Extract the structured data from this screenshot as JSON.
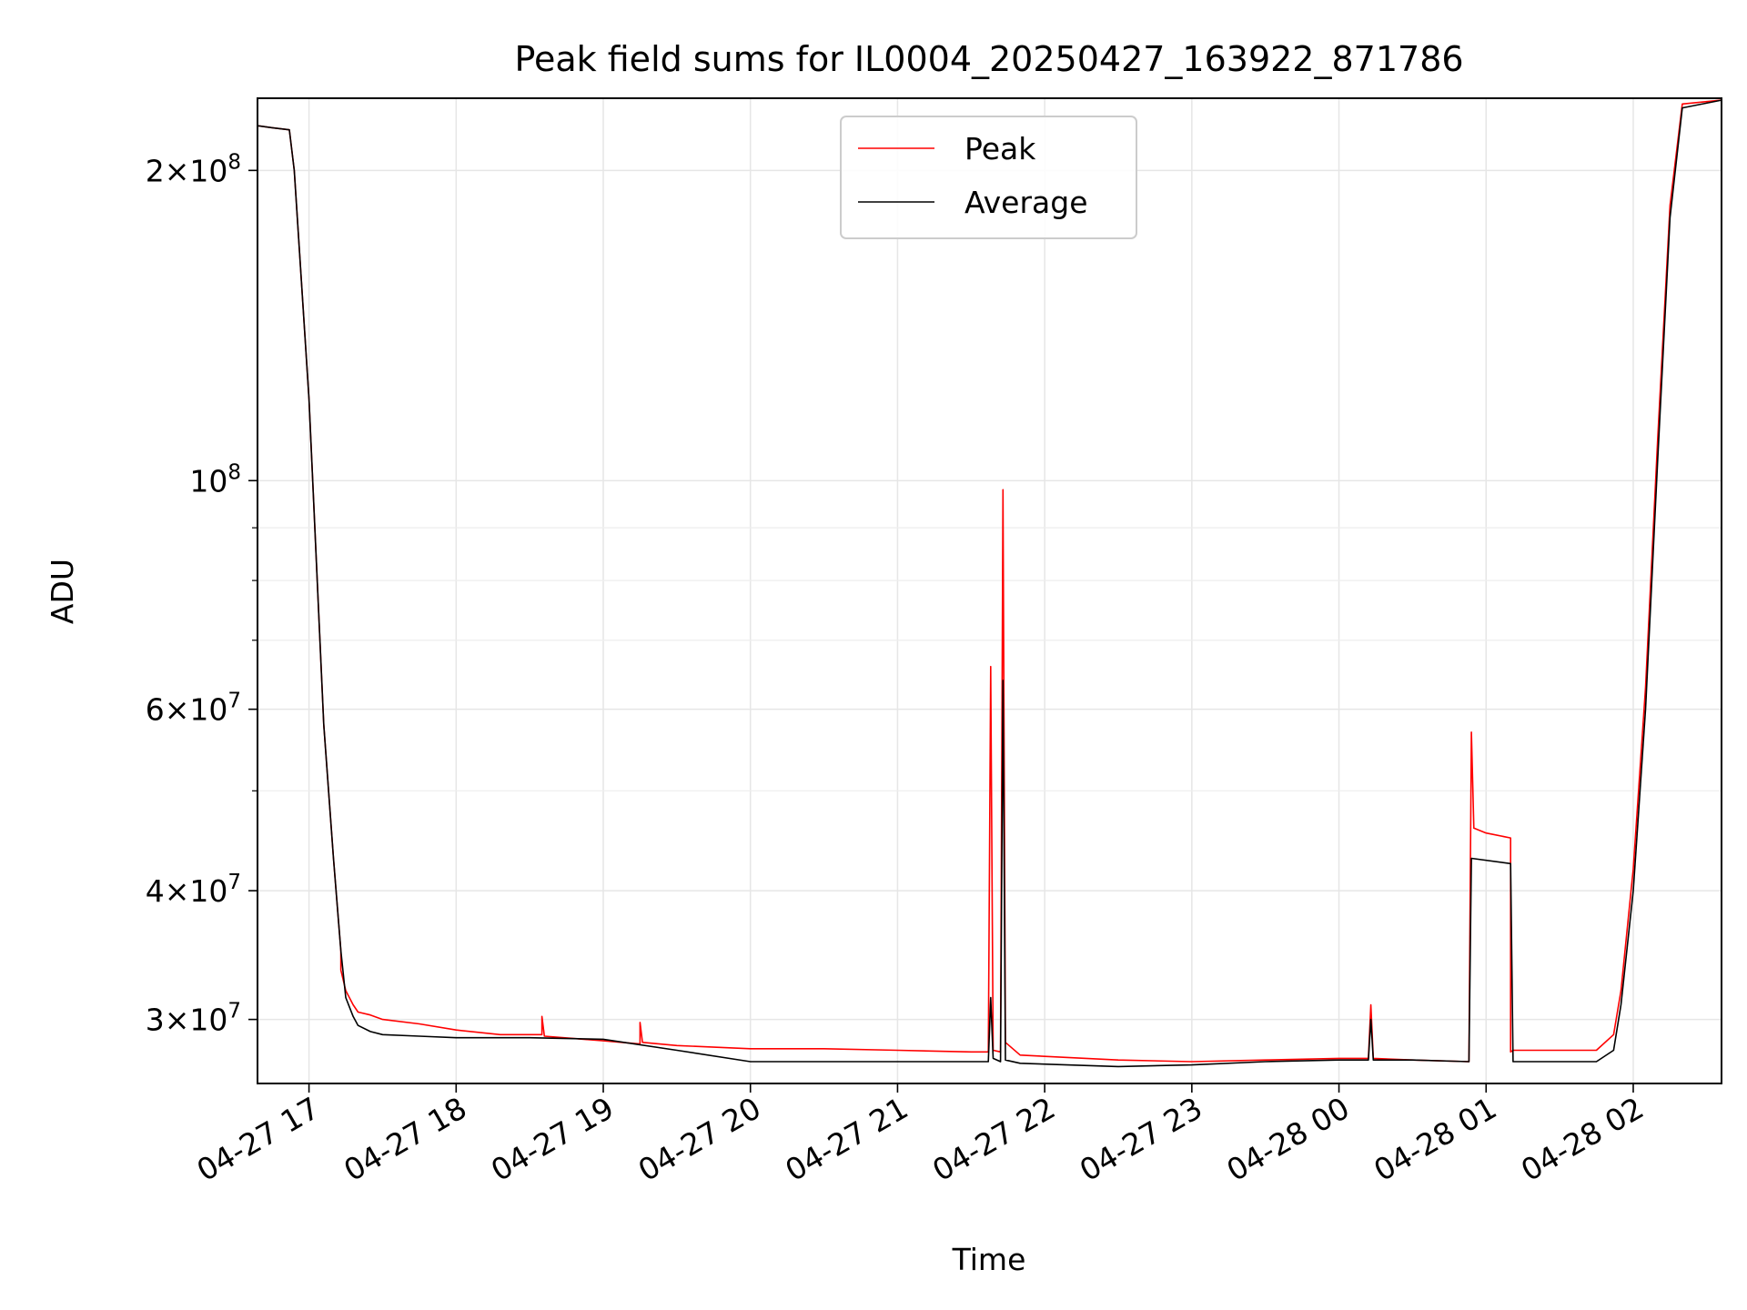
{
  "chart_data": {
    "type": "line",
    "title": "Peak field sums for IL0004_20250427_163922_871786",
    "xlabel": "Time",
    "ylabel": "ADU",
    "x_axis": "datetime",
    "xlim": [
      "2025-04-27 16:39",
      "2025-04-28 02:36"
    ],
    "y_scale": "log",
    "ylim": [
      26000000,
      235000000
    ],
    "grid": true,
    "legend_position": "top-center",
    "x_ticks": [
      {
        "value": "2025-04-27 17:00",
        "label": "04-27 17"
      },
      {
        "value": "2025-04-27 18:00",
        "label": "04-27 18"
      },
      {
        "value": "2025-04-27 19:00",
        "label": "04-27 19"
      },
      {
        "value": "2025-04-27 20:00",
        "label": "04-27 20"
      },
      {
        "value": "2025-04-27 21:00",
        "label": "04-27 21"
      },
      {
        "value": "2025-04-27 22:00",
        "label": "04-27 22"
      },
      {
        "value": "2025-04-27 23:00",
        "label": "04-27 23"
      },
      {
        "value": "2025-04-28 00:00",
        "label": "04-28 00"
      },
      {
        "value": "2025-04-28 01:00",
        "label": "04-28 01"
      },
      {
        "value": "2025-04-28 02:00",
        "label": "04-28 02"
      }
    ],
    "y_ticks": [
      {
        "value": 30000000,
        "mant": "3",
        "exp": "7"
      },
      {
        "value": 40000000,
        "mant": "4",
        "exp": "7"
      },
      {
        "value": 60000000,
        "mant": "6",
        "exp": "7"
      },
      {
        "value": 100000000,
        "mant": "",
        "exp": "8"
      },
      {
        "value": 200000000,
        "mant": "2",
        "exp": "8"
      }
    ],
    "y_minor_ticks": [
      50000000,
      70000000,
      80000000,
      90000000
    ],
    "series": [
      {
        "name": "Peak",
        "color": "#ff0000",
        "x": [
          "2025-04-27 16:39",
          "2025-04-27 16:45",
          "2025-04-27 16:52",
          "2025-04-27 16:54",
          "2025-04-27 17:00",
          "2025-04-27 17:06",
          "2025-04-27 17:10",
          "2025-04-27 17:13",
          "2025-04-27 17:13",
          "2025-04-27 17:15",
          "2025-04-27 17:18",
          "2025-04-27 17:20",
          "2025-04-27 17:25",
          "2025-04-27 17:30",
          "2025-04-27 17:45",
          "2025-04-27 18:00",
          "2025-04-27 18:18",
          "2025-04-27 18:35",
          "2025-04-27 18:35",
          "2025-04-27 18:36",
          "2025-04-27 19:00",
          "2025-04-27 19:15",
          "2025-04-27 19:15",
          "2025-04-27 19:16",
          "2025-04-27 19:30",
          "2025-04-27 20:00",
          "2025-04-27 20:30",
          "2025-04-27 21:00",
          "2025-04-27 21:30",
          "2025-04-27 21:37",
          "2025-04-27 21:38",
          "2025-04-27 21:39",
          "2025-04-27 21:42",
          "2025-04-27 21:43",
          "2025-04-27 21:44",
          "2025-04-27 21:50",
          "2025-04-27 22:30",
          "2025-04-27 23:00",
          "2025-04-27 23:30",
          "2025-04-28 00:00",
          "2025-04-28 00:12",
          "2025-04-28 00:13",
          "2025-04-28 00:14",
          "2025-04-28 00:30",
          "2025-04-28 00:53",
          "2025-04-28 00:54",
          "2025-04-28 00:55",
          "2025-04-28 01:00",
          "2025-04-28 01:10",
          "2025-04-28 01:10",
          "2025-04-28 01:11",
          "2025-04-28 01:30",
          "2025-04-28 01:45",
          "2025-04-28 01:52",
          "2025-04-28 01:55",
          "2025-04-28 02:00",
          "2025-04-28 02:05",
          "2025-04-28 02:10",
          "2025-04-28 02:15",
          "2025-04-28 02:20",
          "2025-04-28 02:36"
        ],
        "y": [
          221000000,
          220000000,
          219000000,
          200000000,
          120000000,
          58000000,
          43000000,
          35000000,
          33500000,
          32000000,
          31000000,
          30500000,
          30300000,
          30000000,
          29700000,
          29300000,
          29000000,
          29000000,
          30200000,
          28900000,
          28600000,
          28400000,
          29800000,
          28500000,
          28300000,
          28100000,
          28100000,
          28000000,
          27900000,
          27900000,
          66000000,
          28000000,
          27900000,
          98000000,
          28500000,
          27700000,
          27400000,
          27300000,
          27400000,
          27500000,
          27500000,
          31000000,
          27500000,
          27400000,
          27300000,
          57000000,
          46000000,
          45500000,
          45000000,
          27900000,
          28000000,
          28000000,
          28000000,
          29000000,
          32000000,
          42000000,
          63000000,
          110000000,
          185000000,
          232000000,
          234000000
        ]
      },
      {
        "name": "Average",
        "color": "#000000",
        "x": [
          "2025-04-27 16:39",
          "2025-04-27 16:45",
          "2025-04-27 16:52",
          "2025-04-27 16:54",
          "2025-04-27 17:00",
          "2025-04-27 17:06",
          "2025-04-27 17:10",
          "2025-04-27 17:13",
          "2025-04-27 17:15",
          "2025-04-27 17:18",
          "2025-04-27 17:20",
          "2025-04-27 17:25",
          "2025-04-27 17:30",
          "2025-04-27 17:45",
          "2025-04-27 18:00",
          "2025-04-27 18:30",
          "2025-04-27 19:00",
          "2025-04-27 19:30",
          "2025-04-27 20:00",
          "2025-04-27 20:30",
          "2025-04-27 21:00",
          "2025-04-27 21:30",
          "2025-04-27 21:37",
          "2025-04-27 21:38",
          "2025-04-27 21:39",
          "2025-04-27 21:42",
          "2025-04-27 21:43",
          "2025-04-27 21:44",
          "2025-04-27 21:50",
          "2025-04-27 22:30",
          "2025-04-27 23:00",
          "2025-04-27 23:30",
          "2025-04-28 00:00",
          "2025-04-28 00:12",
          "2025-04-28 00:13",
          "2025-04-28 00:14",
          "2025-04-28 00:30",
          "2025-04-28 00:53",
          "2025-04-28 00:54",
          "2025-04-28 01:10",
          "2025-04-28 01:11",
          "2025-04-28 01:30",
          "2025-04-28 01:45",
          "2025-04-28 01:52",
          "2025-04-28 01:55",
          "2025-04-28 02:00",
          "2025-04-28 02:05",
          "2025-04-28 02:10",
          "2025-04-28 02:15",
          "2025-04-28 02:20",
          "2025-04-28 02:36"
        ],
        "y": [
          221000000,
          220000000,
          219000000,
          200000000,
          120000000,
          58000000,
          43000000,
          35000000,
          31500000,
          30200000,
          29600000,
          29200000,
          29000000,
          28900000,
          28800000,
          28800000,
          28700000,
          28000000,
          27300000,
          27300000,
          27300000,
          27300000,
          27300000,
          31500000,
          27500000,
          27300000,
          64000000,
          27400000,
          27200000,
          27000000,
          27100000,
          27300000,
          27400000,
          27400000,
          30000000,
          27400000,
          27400000,
          27300000,
          43000000,
          42500000,
          27300000,
          27300000,
          27300000,
          28000000,
          31000000,
          40000000,
          60000000,
          105000000,
          180000000,
          230000000,
          234000000
        ]
      }
    ]
  }
}
